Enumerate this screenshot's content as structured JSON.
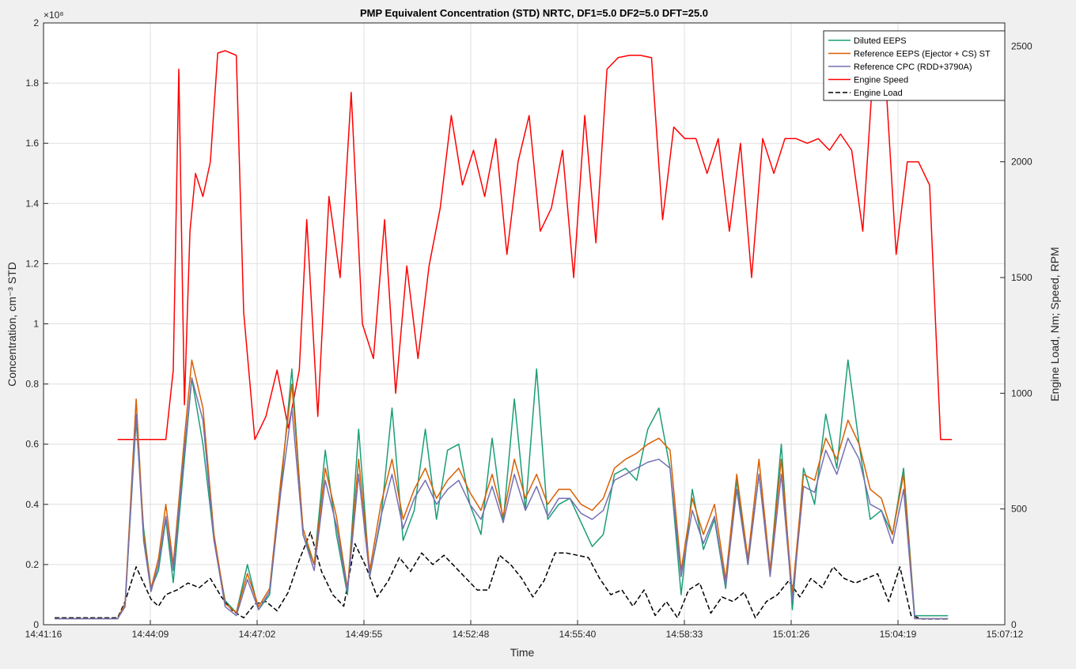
{
  "chart_data": {
    "type": "line",
    "title": "PMP Equivalent Concentration (STD) NRTC, DF1=5.0 DF2=5.0 DFT=25.0",
    "xlabel": "Time",
    "ylabel_left": "Concentration, cm⁻³ STD",
    "ylabel_right": "Engine Load, Nm; Speed, RPM",
    "y_left_exponent": "×10⁸",
    "x_ticks": [
      "14:41:16",
      "14:44:09",
      "14:47:02",
      "14:49:55",
      "14:52:48",
      "14:55:40",
      "14:58:33",
      "15:01:26",
      "15:04:19",
      "15:07:12"
    ],
    "y_left_ticks": [
      "0",
      "0.2",
      "0.4",
      "0.6",
      "0.8",
      "1",
      "1.2",
      "1.4",
      "1.6",
      "1.8",
      "2"
    ],
    "y_right_ticks": [
      "0",
      "500",
      "1000",
      "1500",
      "2000",
      "2500"
    ],
    "y_left_range": [
      0,
      2.0
    ],
    "y_right_range": [
      0,
      2600
    ],
    "x_range_minutes": [
      0,
      25.93
    ],
    "grid": true,
    "legend_position": "top-right",
    "colors": {
      "diluted": "#1a9e77",
      "eeps": "#d95f02",
      "cpc": "#7570b3",
      "speed": "#ff0000",
      "load": "#000000"
    },
    "series": [
      {
        "name": "Diluted EEPS",
        "axis": "left",
        "color_key": "diluted",
        "style": "solid",
        "x": [
          0.3,
          2.0,
          2.2,
          2.5,
          2.7,
          2.9,
          3.1,
          3.3,
          3.5,
          3.8,
          4.0,
          4.3,
          4.6,
          4.9,
          5.2,
          5.5,
          5.8,
          6.1,
          6.4,
          6.7,
          7.0,
          7.3,
          7.6,
          7.9,
          8.2,
          8.5,
          8.8,
          9.1,
          9.4,
          9.7,
          10.0,
          10.3,
          10.6,
          10.9,
          11.2,
          11.5,
          11.8,
          12.1,
          12.4,
          12.7,
          13.0,
          13.3,
          13.6,
          13.9,
          14.2,
          14.5,
          14.8,
          15.1,
          15.4,
          15.7,
          16.0,
          16.3,
          16.6,
          16.9,
          17.2,
          17.5,
          17.8,
          18.1,
          18.4,
          18.7,
          19.0,
          19.3,
          19.6,
          19.9,
          20.2,
          20.5,
          20.8,
          21.1,
          21.4,
          21.7,
          22.0,
          22.3,
          22.6,
          22.9,
          23.2,
          23.5,
          23.8,
          24.1,
          24.4
        ],
        "values": [
          0.02,
          0.02,
          0.07,
          0.68,
          0.32,
          0.12,
          0.18,
          0.35,
          0.14,
          0.55,
          0.82,
          0.6,
          0.28,
          0.08,
          0.04,
          0.2,
          0.05,
          0.1,
          0.45,
          0.85,
          0.3,
          0.2,
          0.58,
          0.3,
          0.1,
          0.65,
          0.16,
          0.35,
          0.72,
          0.28,
          0.38,
          0.65,
          0.35,
          0.58,
          0.6,
          0.4,
          0.3,
          0.62,
          0.34,
          0.75,
          0.38,
          0.85,
          0.35,
          0.4,
          0.42,
          0.34,
          0.26,
          0.3,
          0.5,
          0.52,
          0.48,
          0.65,
          0.72,
          0.52,
          0.1,
          0.45,
          0.25,
          0.35,
          0.12,
          0.48,
          0.2,
          0.5,
          0.18,
          0.6,
          0.05,
          0.52,
          0.4,
          0.7,
          0.52,
          0.88,
          0.6,
          0.35,
          0.38,
          0.3,
          0.52,
          0.03,
          0.03,
          0.03,
          0.03
        ]
      },
      {
        "name": "Reference EEPS (Ejector + CS) ST",
        "axis": "left",
        "color_key": "eeps",
        "style": "solid",
        "x": [
          0.3,
          2.0,
          2.2,
          2.5,
          2.7,
          2.9,
          3.1,
          3.3,
          3.5,
          3.8,
          4.0,
          4.3,
          4.6,
          4.9,
          5.2,
          5.5,
          5.8,
          6.1,
          6.4,
          6.7,
          7.0,
          7.3,
          7.6,
          7.9,
          8.2,
          8.5,
          8.8,
          9.1,
          9.4,
          9.7,
          10.0,
          10.3,
          10.6,
          10.9,
          11.2,
          11.5,
          11.8,
          12.1,
          12.4,
          12.7,
          13.0,
          13.3,
          13.6,
          13.9,
          14.2,
          14.5,
          14.8,
          15.1,
          15.4,
          15.7,
          16.0,
          16.3,
          16.6,
          16.9,
          17.2,
          17.5,
          17.8,
          18.1,
          18.4,
          18.7,
          19.0,
          19.3,
          19.6,
          19.9,
          20.2,
          20.5,
          20.8,
          21.1,
          21.4,
          21.7,
          22.0,
          22.3,
          22.6,
          22.9,
          23.2,
          23.5,
          23.8,
          24.1,
          24.4
        ],
        "values": [
          0.02,
          0.02,
          0.07,
          0.75,
          0.3,
          0.12,
          0.22,
          0.4,
          0.2,
          0.62,
          0.88,
          0.72,
          0.3,
          0.07,
          0.04,
          0.17,
          0.06,
          0.12,
          0.48,
          0.8,
          0.32,
          0.2,
          0.52,
          0.36,
          0.12,
          0.55,
          0.18,
          0.4,
          0.55,
          0.35,
          0.45,
          0.52,
          0.42,
          0.48,
          0.52,
          0.44,
          0.38,
          0.5,
          0.36,
          0.55,
          0.42,
          0.5,
          0.4,
          0.45,
          0.45,
          0.4,
          0.38,
          0.42,
          0.52,
          0.55,
          0.57,
          0.6,
          0.62,
          0.58,
          0.18,
          0.42,
          0.3,
          0.4,
          0.15,
          0.5,
          0.22,
          0.55,
          0.18,
          0.55,
          0.1,
          0.5,
          0.48,
          0.62,
          0.55,
          0.68,
          0.6,
          0.45,
          0.42,
          0.3,
          0.5,
          0.02,
          0.02,
          0.02,
          0.02
        ]
      },
      {
        "name": "Reference CPC (RDD+3790A)",
        "axis": "left",
        "color_key": "cpc",
        "style": "solid",
        "x": [
          0.3,
          2.0,
          2.2,
          2.5,
          2.7,
          2.9,
          3.1,
          3.3,
          3.5,
          3.8,
          4.0,
          4.3,
          4.6,
          4.9,
          5.2,
          5.5,
          5.8,
          6.1,
          6.4,
          6.7,
          7.0,
          7.3,
          7.6,
          7.9,
          8.2,
          8.5,
          8.8,
          9.1,
          9.4,
          9.7,
          10.0,
          10.3,
          10.6,
          10.9,
          11.2,
          11.5,
          11.8,
          12.1,
          12.4,
          12.7,
          13.0,
          13.3,
          13.6,
          13.9,
          14.2,
          14.5,
          14.8,
          15.1,
          15.4,
          15.7,
          16.0,
          16.3,
          16.6,
          16.9,
          17.2,
          17.5,
          17.8,
          18.1,
          18.4,
          18.7,
          19.0,
          19.3,
          19.6,
          19.9,
          20.2,
          20.5,
          20.8,
          21.1,
          21.4,
          21.7,
          22.0,
          22.3,
          22.6,
          22.9,
          23.2,
          23.5,
          23.8,
          24.1,
          24.4
        ],
        "values": [
          0.02,
          0.02,
          0.06,
          0.7,
          0.28,
          0.11,
          0.2,
          0.36,
          0.18,
          0.58,
          0.82,
          0.68,
          0.28,
          0.06,
          0.03,
          0.15,
          0.05,
          0.11,
          0.44,
          0.72,
          0.3,
          0.18,
          0.48,
          0.33,
          0.11,
          0.5,
          0.16,
          0.36,
          0.5,
          0.32,
          0.42,
          0.48,
          0.4,
          0.45,
          0.48,
          0.4,
          0.35,
          0.46,
          0.34,
          0.5,
          0.38,
          0.46,
          0.36,
          0.42,
          0.42,
          0.37,
          0.35,
          0.38,
          0.48,
          0.5,
          0.52,
          0.54,
          0.55,
          0.52,
          0.16,
          0.38,
          0.27,
          0.36,
          0.13,
          0.45,
          0.2,
          0.5,
          0.16,
          0.5,
          0.08,
          0.46,
          0.44,
          0.58,
          0.5,
          0.62,
          0.55,
          0.4,
          0.38,
          0.27,
          0.45,
          0.02,
          0.02,
          0.02,
          0.02
        ]
      },
      {
        "name": "Engine Speed",
        "axis": "right",
        "color_key": "speed",
        "style": "solid",
        "x": [
          2.0,
          3.3,
          3.5,
          3.65,
          3.8,
          3.95,
          4.1,
          4.3,
          4.5,
          4.7,
          4.9,
          5.2,
          5.4,
          5.7,
          6.0,
          6.3,
          6.6,
          6.9,
          7.1,
          7.4,
          7.7,
          8.0,
          8.3,
          8.6,
          8.9,
          9.2,
          9.5,
          9.8,
          10.1,
          10.4,
          10.7,
          11.0,
          11.3,
          11.6,
          11.9,
          12.2,
          12.5,
          12.8,
          13.1,
          13.4,
          13.7,
          14.0,
          14.3,
          14.6,
          14.9,
          15.2,
          15.5,
          15.8,
          16.1,
          16.4,
          16.7,
          17.0,
          17.3,
          17.6,
          17.9,
          18.2,
          18.5,
          18.8,
          19.1,
          19.4,
          19.7,
          20.0,
          20.3,
          20.6,
          20.9,
          21.2,
          21.5,
          21.8,
          22.1,
          22.4,
          22.7,
          23.0,
          23.3,
          23.6,
          23.9,
          24.2,
          24.5
        ],
        "values": [
          800,
          800,
          1100,
          2400,
          950,
          1700,
          1950,
          1850,
          2000,
          2470,
          2480,
          2460,
          1350,
          800,
          900,
          1100,
          850,
          1100,
          1750,
          900,
          1850,
          1500,
          2300,
          1300,
          1150,
          1750,
          1000,
          1550,
          1150,
          1550,
          1800,
          2200,
          1900,
          2050,
          1850,
          2100,
          1600,
          2000,
          2200,
          1700,
          1800,
          2050,
          1500,
          2200,
          1650,
          2400,
          2450,
          2460,
          2460,
          2450,
          1750,
          2150,
          2100,
          2100,
          1950,
          2100,
          1700,
          2080,
          1500,
          2100,
          1950,
          2100,
          2100,
          2080,
          2100,
          2050,
          2120,
          2050,
          1700,
          2450,
          2400,
          1600,
          2000,
          2000,
          1900,
          800,
          800
        ]
      },
      {
        "name": "Engine Load",
        "axis": "right",
        "color_key": "load",
        "style": "dashed",
        "x": [
          0.3,
          2.0,
          2.2,
          2.5,
          2.7,
          2.9,
          3.1,
          3.3,
          3.6,
          3.9,
          4.2,
          4.5,
          4.8,
          5.1,
          5.4,
          5.7,
          6.0,
          6.3,
          6.6,
          6.9,
          7.2,
          7.5,
          7.8,
          8.1,
          8.4,
          8.7,
          9.0,
          9.3,
          9.6,
          9.9,
          10.2,
          10.5,
          10.8,
          11.1,
          11.4,
          11.7,
          12.0,
          12.3,
          12.6,
          12.9,
          13.2,
          13.5,
          13.8,
          14.1,
          14.4,
          14.7,
          15.0,
          15.3,
          15.6,
          15.9,
          16.2,
          16.5,
          16.8,
          17.1,
          17.4,
          17.7,
          18.0,
          18.3,
          18.6,
          18.9,
          19.2,
          19.5,
          19.8,
          20.1,
          20.4,
          20.7,
          21.0,
          21.3,
          21.6,
          21.9,
          22.2,
          22.5,
          22.8,
          23.1,
          23.4,
          23.7,
          24.0,
          24.4
        ],
        "values": [
          30,
          30,
          100,
          250,
          180,
          110,
          80,
          130,
          150,
          180,
          160,
          200,
          120,
          60,
          30,
          90,
          100,
          60,
          140,
          280,
          400,
          230,
          130,
          80,
          350,
          250,
          120,
          190,
          290,
          230,
          310,
          260,
          300,
          250,
          200,
          150,
          150,
          300,
          260,
          200,
          120,
          190,
          310,
          310,
          300,
          290,
          200,
          130,
          150,
          80,
          150,
          40,
          100,
          30,
          150,
          180,
          50,
          120,
          100,
          140,
          30,
          100,
          130,
          190,
          120,
          200,
          160,
          250,
          200,
          180,
          200,
          220,
          100,
          250,
          40,
          25,
          25,
          25
        ]
      }
    ]
  }
}
